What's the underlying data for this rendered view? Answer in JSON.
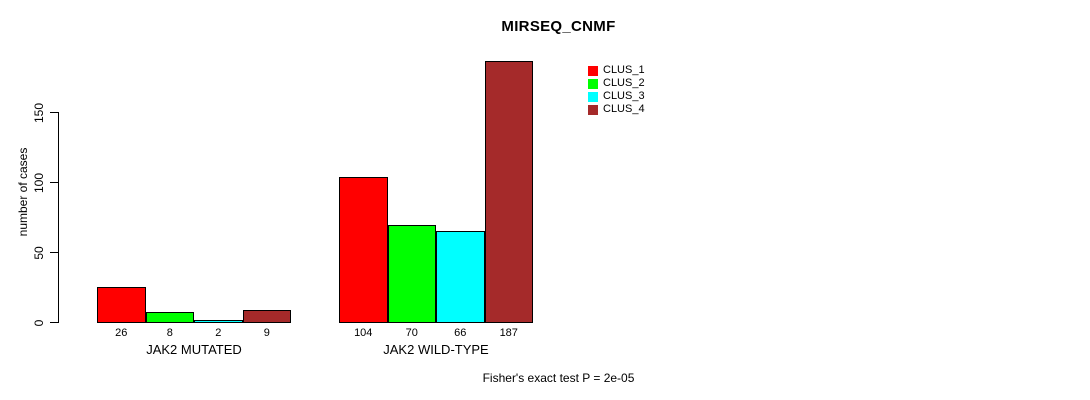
{
  "chart_data": {
    "type": "bar",
    "title": "MIRSEQ_CNMF",
    "xlabel": "",
    "ylabel": "number of cases",
    "categories": [
      "JAK2 MUTATED",
      "JAK2 WILD-TYPE"
    ],
    "series": [
      {
        "name": "CLUS_1",
        "color": "#ff0000",
        "values": [
          26,
          104
        ]
      },
      {
        "name": "CLUS_2",
        "color": "#00ff00",
        "values": [
          8,
          70
        ]
      },
      {
        "name": "CLUS_3",
        "color": "#00ffff",
        "values": [
          2,
          66
        ]
      },
      {
        "name": "CLUS_4",
        "color": "#a52a2a",
        "values": [
          9,
          187
        ]
      }
    ],
    "yticks": [
      0,
      50,
      100,
      150
    ],
    "ylim": [
      0,
      190
    ],
    "grid": false,
    "bar_borders": true,
    "bar_value_labels": true,
    "legend_position": "top-right",
    "annotation": "Fisher's exact test P = 2e-05"
  }
}
